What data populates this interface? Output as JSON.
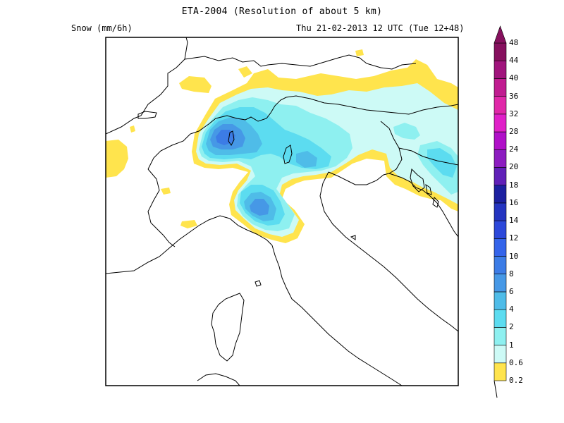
{
  "header": {
    "title": "ETA-2004 (Resolution of about 5 km)",
    "field": "Snow (mm/6h)",
    "valid_time": "Thu 21-02-2013 12 UTC (Tue 12+48)"
  },
  "legend": {
    "levels": [
      "0.2",
      "0.6",
      "1",
      "2",
      "4",
      "6",
      "8",
      "10",
      "12",
      "14",
      "16",
      "18",
      "20",
      "24",
      "28",
      "32",
      "36",
      "40",
      "44",
      "48"
    ],
    "colors": [
      "#ffe44d",
      "#cdfaf6",
      "#8ef0f0",
      "#5cdcf0",
      "#4fbce8",
      "#4698e6",
      "#3c7ce6",
      "#3464ea",
      "#2c48da",
      "#2434c0",
      "#1c20a0",
      "#6020b8",
      "#8c1cc0",
      "#b010c8",
      "#e020c8",
      "#e028a8",
      "#c01c90",
      "#a0147c",
      "#86105e"
    ]
  },
  "colors": {
    "frame": "#000000",
    "border_line": "#000000",
    "sea_land": "#ffffff"
  }
}
